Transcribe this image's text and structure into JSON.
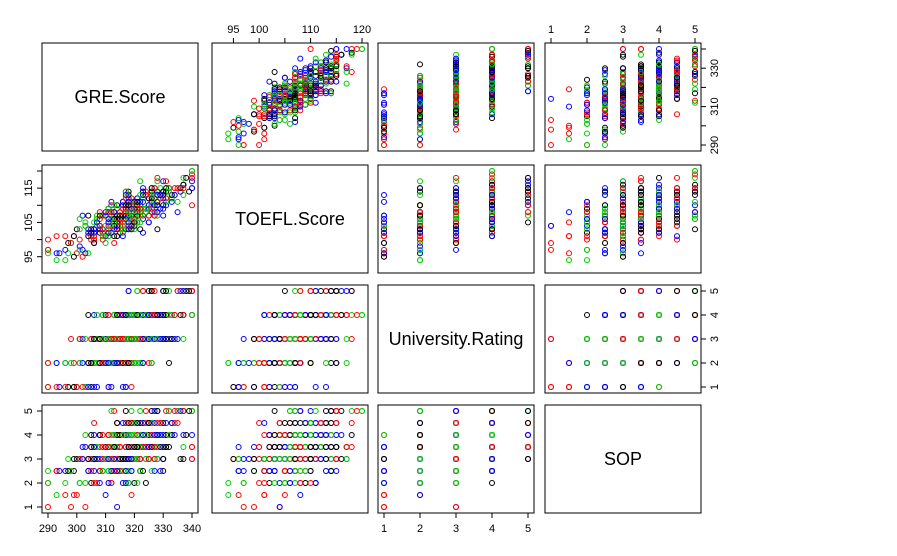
{
  "chart_data": {
    "type": "scatter-matrix",
    "variables": [
      "GRE.Score",
      "TOEFL.Score",
      "University.Rating",
      "SOP"
    ],
    "ranges": {
      "GRE.Score": [
        290,
        340
      ],
      "TOEFL.Score": [
        92,
        120
      ],
      "University.Rating": [
        1,
        5
      ],
      "SOP": [
        1,
        5
      ]
    },
    "ticks": {
      "GRE.Score": [
        290,
        300,
        310,
        320,
        330,
        340
      ],
      "TOEFL.Score": [
        95,
        100,
        105,
        110,
        115,
        120
      ],
      "University.Rating": [
        1,
        2,
        3,
        4,
        5
      ],
      "SOP": [
        1,
        2,
        3,
        4,
        5
      ]
    },
    "tick_labels": {
      "top": {
        "col": 1,
        "values": [
          95,
          100,
          110,
          120
        ]
      },
      "top_col3": {
        "col": 3,
        "values": [
          1,
          2,
          3,
          4,
          5
        ]
      },
      "bottom_col0": {
        "col": 0,
        "values": [
          290,
          300,
          310,
          320,
          330,
          340
        ]
      },
      "bottom_col2": {
        "col": 2,
        "values": [
          1,
          2,
          3,
          4,
          5
        ]
      },
      "left_row1": {
        "row": 1,
        "values": [
          95,
          105,
          115
        ]
      },
      "left_row3": {
        "row": 3,
        "values": [
          1,
          2,
          3,
          4,
          5
        ]
      },
      "right_row0": {
        "row": 0,
        "values": [
          290,
          310,
          330
        ]
      },
      "right_row2": {
        "row": 2,
        "values": [
          1,
          2,
          3,
          4,
          5
        ]
      }
    },
    "point_colors": [
      "#000000",
      "#ff0000",
      "#00cc00",
      "#0000ff"
    ],
    "point_count": 400,
    "grid": false,
    "legend": "none"
  }
}
